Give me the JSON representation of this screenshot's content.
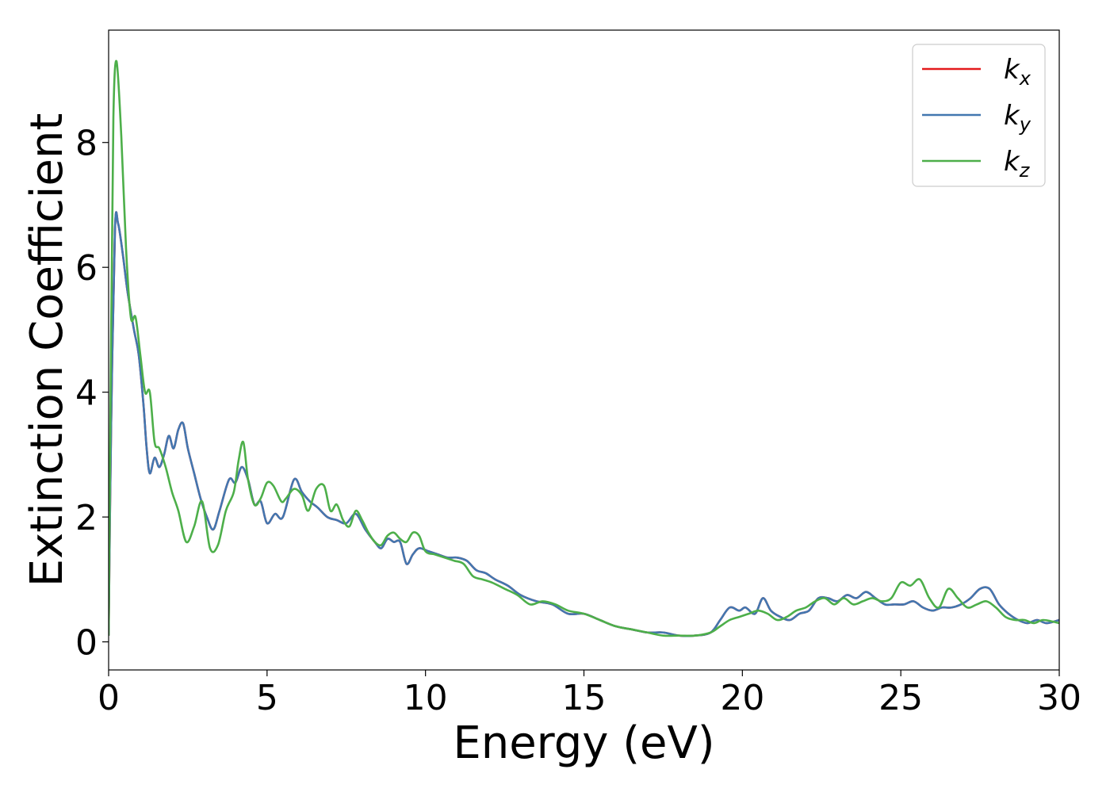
{
  "chart_data": {
    "type": "line",
    "title": "",
    "xlabel": "Energy (eV)",
    "ylabel": "Extinction Coefficient",
    "xlim": [
      0,
      30
    ],
    "ylim": [
      -0.45,
      9.8
    ],
    "xticks": [
      0,
      5,
      10,
      15,
      20,
      25,
      30
    ],
    "xtick_labels": [
      "0",
      "5",
      "10",
      "15",
      "20",
      "25",
      "30"
    ],
    "yticks": [
      0,
      2,
      4,
      6,
      8
    ],
    "ytick_labels": [
      "0",
      "2",
      "4",
      "6",
      "8"
    ],
    "grid": false,
    "legend_position": "top-right",
    "series": [
      {
        "name": "k_x",
        "label_base": "k",
        "label_sub": "x",
        "color": "#e41a1c",
        "x": [
          0,
          0.08,
          0.2,
          0.3,
          0.45,
          0.6,
          0.8,
          0.95,
          1.1,
          1.2,
          1.3,
          1.45,
          1.6,
          1.75,
          1.9,
          2.05,
          2.2,
          2.35,
          2.5,
          2.7,
          2.9,
          3.1,
          3.3,
          3.5,
          3.8,
          4.0,
          4.2,
          4.4,
          4.6,
          4.8,
          5.0,
          5.25,
          5.5,
          5.85,
          6.1,
          6.35,
          6.6,
          6.9,
          7.2,
          7.5,
          7.8,
          8.1,
          8.4,
          8.6,
          8.8,
          9.0,
          9.2,
          9.4,
          9.6,
          9.8,
          10.1,
          10.4,
          10.7,
          11.0,
          11.3,
          11.6,
          11.9,
          12.2,
          12.6,
          13.0,
          13.5,
          14.0,
          14.5,
          15.0,
          15.5,
          16.0,
          16.5,
          17.0,
          17.5,
          18.0,
          18.5,
          19.0,
          19.3,
          19.6,
          19.9,
          20.1,
          20.4,
          20.65,
          20.9,
          21.2,
          21.5,
          21.8,
          22.1,
          22.4,
          22.7,
          23.0,
          23.3,
          23.6,
          23.9,
          24.2,
          24.5,
          24.8,
          25.1,
          25.4,
          25.7,
          26.0,
          26.3,
          26.6,
          26.9,
          27.2,
          27.5,
          27.8,
          28.1,
          28.4,
          28.7,
          29.0,
          29.3,
          29.6,
          30.0
        ],
        "y": [
          0.1,
          3.5,
          6.6,
          6.7,
          6.2,
          5.6,
          5.0,
          4.6,
          3.8,
          3.1,
          2.7,
          2.95,
          2.8,
          3.0,
          3.3,
          3.1,
          3.4,
          3.5,
          3.1,
          2.7,
          2.3,
          2.0,
          1.8,
          2.1,
          2.6,
          2.55,
          2.8,
          2.6,
          2.2,
          2.25,
          1.9,
          2.05,
          2.0,
          2.6,
          2.4,
          2.25,
          2.15,
          2.0,
          1.95,
          1.9,
          2.05,
          1.8,
          1.6,
          1.5,
          1.65,
          1.6,
          1.6,
          1.25,
          1.4,
          1.5,
          1.45,
          1.4,
          1.35,
          1.35,
          1.3,
          1.15,
          1.1,
          1.0,
          0.9,
          0.75,
          0.65,
          0.6,
          0.45,
          0.45,
          0.35,
          0.25,
          0.2,
          0.15,
          0.15,
          0.1,
          0.1,
          0.15,
          0.35,
          0.55,
          0.5,
          0.55,
          0.45,
          0.7,
          0.5,
          0.4,
          0.35,
          0.45,
          0.5,
          0.7,
          0.7,
          0.65,
          0.75,
          0.7,
          0.8,
          0.7,
          0.6,
          0.6,
          0.6,
          0.65,
          0.55,
          0.5,
          0.55,
          0.55,
          0.6,
          0.7,
          0.85,
          0.85,
          0.6,
          0.45,
          0.35,
          0.3,
          0.35,
          0.3,
          0.35
        ]
      },
      {
        "name": "k_y",
        "label_base": "k",
        "label_sub": "y",
        "color": "#4277b0",
        "x": [
          0,
          0.08,
          0.2,
          0.3,
          0.45,
          0.6,
          0.8,
          0.95,
          1.1,
          1.2,
          1.3,
          1.45,
          1.6,
          1.75,
          1.9,
          2.05,
          2.2,
          2.35,
          2.5,
          2.7,
          2.9,
          3.1,
          3.3,
          3.5,
          3.8,
          4.0,
          4.2,
          4.4,
          4.6,
          4.8,
          5.0,
          5.25,
          5.5,
          5.85,
          6.1,
          6.35,
          6.6,
          6.9,
          7.2,
          7.5,
          7.8,
          8.1,
          8.4,
          8.6,
          8.8,
          9.0,
          9.2,
          9.4,
          9.6,
          9.8,
          10.1,
          10.4,
          10.7,
          11.0,
          11.3,
          11.6,
          11.9,
          12.2,
          12.6,
          13.0,
          13.5,
          14.0,
          14.5,
          15.0,
          15.5,
          16.0,
          16.5,
          17.0,
          17.5,
          18.0,
          18.5,
          19.0,
          19.3,
          19.6,
          19.9,
          20.1,
          20.4,
          20.65,
          20.9,
          21.2,
          21.5,
          21.8,
          22.1,
          22.4,
          22.7,
          23.0,
          23.3,
          23.6,
          23.9,
          24.2,
          24.5,
          24.8,
          25.1,
          25.4,
          25.7,
          26.0,
          26.3,
          26.6,
          26.9,
          27.2,
          27.5,
          27.8,
          28.1,
          28.4,
          28.7,
          29.0,
          29.3,
          29.6,
          30.0
        ],
        "y": [
          0.1,
          3.5,
          6.6,
          6.7,
          6.2,
          5.6,
          5.0,
          4.6,
          3.8,
          3.1,
          2.7,
          2.95,
          2.8,
          3.0,
          3.3,
          3.1,
          3.4,
          3.5,
          3.1,
          2.7,
          2.3,
          2.0,
          1.8,
          2.1,
          2.6,
          2.55,
          2.8,
          2.6,
          2.2,
          2.25,
          1.9,
          2.05,
          2.0,
          2.6,
          2.4,
          2.25,
          2.15,
          2.0,
          1.95,
          1.9,
          2.05,
          1.8,
          1.6,
          1.5,
          1.65,
          1.6,
          1.6,
          1.25,
          1.4,
          1.5,
          1.45,
          1.4,
          1.35,
          1.35,
          1.3,
          1.15,
          1.1,
          1.0,
          0.9,
          0.75,
          0.65,
          0.6,
          0.45,
          0.45,
          0.35,
          0.25,
          0.2,
          0.15,
          0.15,
          0.1,
          0.1,
          0.15,
          0.35,
          0.55,
          0.5,
          0.55,
          0.45,
          0.7,
          0.5,
          0.4,
          0.35,
          0.45,
          0.5,
          0.7,
          0.7,
          0.65,
          0.75,
          0.7,
          0.8,
          0.7,
          0.6,
          0.6,
          0.6,
          0.65,
          0.55,
          0.5,
          0.55,
          0.55,
          0.6,
          0.7,
          0.85,
          0.85,
          0.6,
          0.45,
          0.35,
          0.3,
          0.35,
          0.3,
          0.35
        ]
      },
      {
        "name": "k_z",
        "label_base": "k",
        "label_sub": "z",
        "color": "#4daf4a",
        "x": [
          0,
          0.08,
          0.15,
          0.25,
          0.4,
          0.55,
          0.7,
          0.85,
          1.0,
          1.15,
          1.3,
          1.45,
          1.6,
          1.8,
          2.0,
          2.2,
          2.45,
          2.7,
          2.95,
          3.2,
          3.45,
          3.7,
          3.95,
          4.1,
          4.25,
          4.4,
          4.6,
          4.8,
          5.0,
          5.2,
          5.45,
          5.6,
          5.85,
          6.1,
          6.3,
          6.55,
          6.8,
          7.0,
          7.2,
          7.4,
          7.6,
          7.8,
          8.0,
          8.2,
          8.4,
          8.6,
          8.8,
          9.0,
          9.2,
          9.4,
          9.6,
          9.8,
          10.0,
          10.3,
          10.6,
          10.9,
          11.2,
          11.5,
          11.8,
          12.1,
          12.5,
          12.9,
          13.3,
          13.7,
          14.1,
          14.5,
          15.0,
          15.5,
          16.0,
          16.5,
          17.0,
          17.5,
          18.0,
          18.5,
          19.0,
          19.3,
          19.6,
          19.9,
          20.2,
          20.5,
          20.8,
          21.1,
          21.4,
          21.7,
          22.0,
          22.3,
          22.6,
          22.9,
          23.2,
          23.5,
          23.8,
          24.1,
          24.4,
          24.7,
          25.0,
          25.3,
          25.6,
          25.9,
          26.2,
          26.5,
          26.8,
          27.1,
          27.4,
          27.7,
          28.0,
          28.3,
          28.6,
          28.9,
          29.2,
          29.5,
          30.0
        ],
        "y": [
          0.1,
          5.0,
          8.4,
          9.3,
          8.1,
          6.3,
          5.2,
          5.2,
          4.6,
          4.0,
          4.0,
          3.2,
          3.1,
          2.8,
          2.4,
          2.1,
          1.6,
          1.85,
          2.25,
          1.5,
          1.55,
          2.1,
          2.4,
          2.9,
          3.2,
          2.6,
          2.2,
          2.3,
          2.55,
          2.5,
          2.25,
          2.3,
          2.45,
          2.35,
          2.1,
          2.45,
          2.5,
          2.1,
          2.2,
          1.95,
          1.85,
          2.1,
          1.95,
          1.75,
          1.6,
          1.55,
          1.7,
          1.75,
          1.65,
          1.6,
          1.75,
          1.7,
          1.45,
          1.4,
          1.35,
          1.3,
          1.25,
          1.05,
          1.0,
          0.95,
          0.85,
          0.75,
          0.6,
          0.65,
          0.6,
          0.5,
          0.45,
          0.35,
          0.25,
          0.2,
          0.15,
          0.1,
          0.1,
          0.1,
          0.15,
          0.25,
          0.35,
          0.4,
          0.45,
          0.5,
          0.45,
          0.35,
          0.4,
          0.5,
          0.55,
          0.65,
          0.7,
          0.6,
          0.7,
          0.6,
          0.65,
          0.7,
          0.65,
          0.7,
          0.95,
          0.9,
          1.0,
          0.7,
          0.55,
          0.85,
          0.7,
          0.55,
          0.6,
          0.65,
          0.55,
          0.4,
          0.35,
          0.35,
          0.3,
          0.35,
          0.3
        ]
      }
    ]
  }
}
